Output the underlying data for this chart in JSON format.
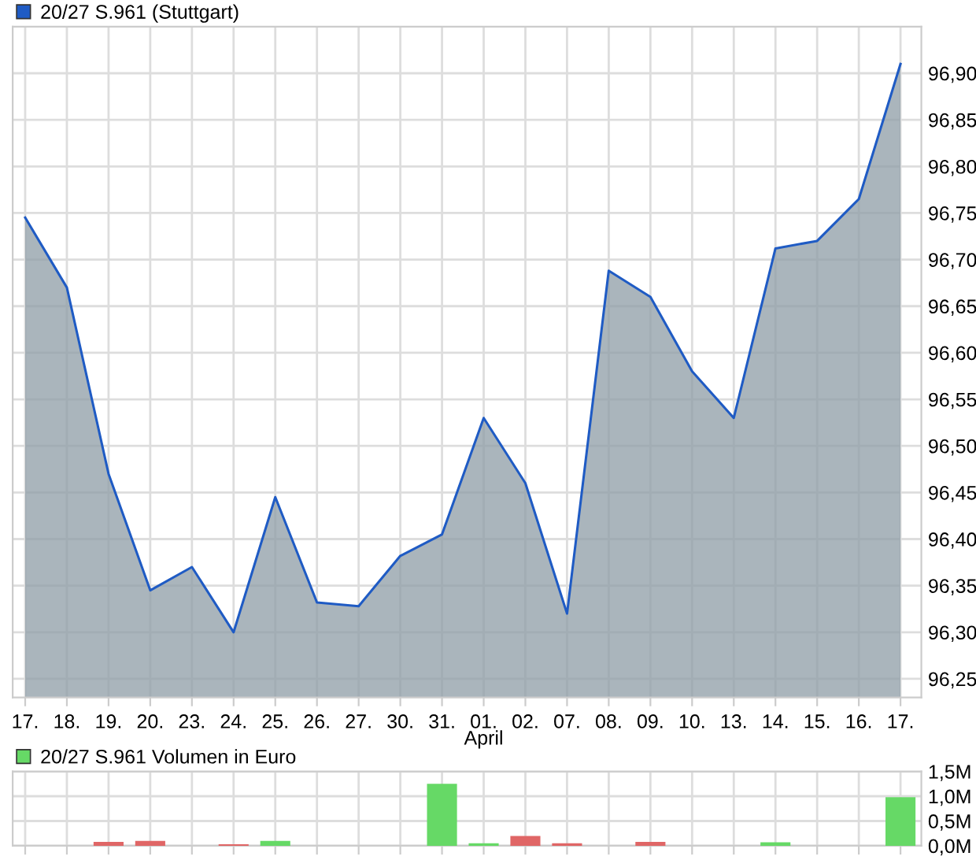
{
  "chart_data": [
    {
      "type": "area",
      "categories": [
        "17.",
        "18.",
        "19.",
        "20.",
        "23.",
        "24.",
        "25.",
        "26.",
        "27.",
        "30.",
        "31.",
        "01.",
        "02.",
        "07.",
        "08.",
        "09.",
        "10.",
        "13.",
        "14.",
        "15.",
        "16.",
        "17."
      ],
      "series": [
        {
          "name": "20/27 S.961 (Stuttgart)",
          "color": "#1f5bc4",
          "values": [
            96.745,
            96.67,
            96.47,
            96.345,
            96.37,
            96.3,
            96.445,
            96.332,
            96.328,
            96.382,
            96.405,
            96.53,
            96.46,
            96.32,
            96.688,
            96.66,
            96.58,
            96.53,
            96.712,
            96.72,
            96.765,
            96.91
          ]
        }
      ],
      "annotations": [
        {
          "text": "April",
          "x": "01."
        }
      ],
      "ylim": [
        96.23,
        96.95
      ],
      "yticks": [
        {
          "value": 96.25,
          "label": "96,25"
        },
        {
          "value": 96.3,
          "label": "96,30"
        },
        {
          "value": 96.35,
          "label": "96,35"
        },
        {
          "value": 96.4,
          "label": "96,40"
        },
        {
          "value": 96.45,
          "label": "96,45"
        },
        {
          "value": 96.5,
          "label": "96,50"
        },
        {
          "value": 96.55,
          "label": "96,55"
        },
        {
          "value": 96.6,
          "label": "96,60"
        },
        {
          "value": 96.65,
          "label": "96,65"
        },
        {
          "value": 96.7,
          "label": "96,70"
        },
        {
          "value": 96.75,
          "label": "96,75"
        },
        {
          "value": 96.8,
          "label": "96,80"
        },
        {
          "value": 96.85,
          "label": "96,85"
        },
        {
          "value": 96.9,
          "label": "96,90"
        }
      ],
      "grid": true,
      "legend": "top left"
    },
    {
      "type": "bar",
      "categories": [
        "17.",
        "18.",
        "19.",
        "20.",
        "23.",
        "24.",
        "25.",
        "26.",
        "27.",
        "30.",
        "31.",
        "01.",
        "02.",
        "07.",
        "08.",
        "09.",
        "10.",
        "13.",
        "14.",
        "15.",
        "16.",
        "17."
      ],
      "series": [
        {
          "name": "20/27 S.961 Volumen in Euro",
          "color": "#66d966",
          "values": [
            0,
            0,
            0.08,
            0.1,
            0,
            0.03,
            0.1,
            0,
            0,
            0,
            1.25,
            0.05,
            0.2,
            0.05,
            0,
            0.08,
            0,
            0,
            0.07,
            0,
            0,
            0.98
          ],
          "colors": [
            "#66d966",
            "#66d966",
            "#e06666",
            "#e06666",
            "#66d966",
            "#e06666",
            "#66d966",
            "#66d966",
            "#66d966",
            "#66d966",
            "#66d966",
            "#66d966",
            "#e06666",
            "#e06666",
            "#66d966",
            "#e06666",
            "#66d966",
            "#66d966",
            "#66d966",
            "#66d966",
            "#66d966",
            "#66d966"
          ]
        }
      ],
      "ylim": [
        0,
        1.5
      ],
      "yticks": [
        {
          "value": 0,
          "label": "0,0M"
        },
        {
          "value": 0.5,
          "label": "0,5M"
        },
        {
          "value": 1.0,
          "label": "1,0M"
        },
        {
          "value": 1.5,
          "label": "1,5M"
        }
      ],
      "tick_labels": "y",
      "grid": true,
      "legend": "top left"
    }
  ]
}
